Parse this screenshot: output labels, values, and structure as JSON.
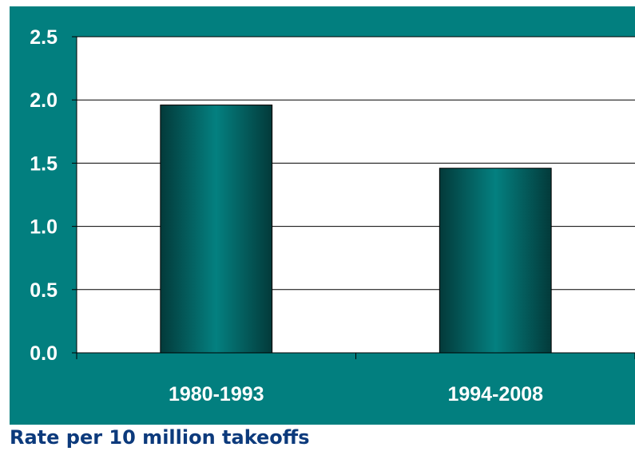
{
  "caption": "Rate per 10 million takeoffs",
  "colors": {
    "panel_background": "#027f7f",
    "plot_background": "#ffffff",
    "bar_edge": "#033a3a",
    "bar_center": "#048080",
    "tick_text": "#ffffff",
    "caption_text": "#0c3a7c"
  },
  "chart_data": {
    "type": "bar",
    "categories": [
      "1980-1993",
      "1994-2008"
    ],
    "values": [
      1.96,
      1.46
    ],
    "ylim": [
      0,
      2.5
    ],
    "yticks": [
      "0.0",
      "0.5",
      "1.0",
      "1.5",
      "2.0",
      "2.5"
    ],
    "ytick_values": [
      0,
      0.5,
      1.0,
      1.5,
      2.0,
      2.5
    ],
    "grid": true,
    "legend": "none"
  }
}
